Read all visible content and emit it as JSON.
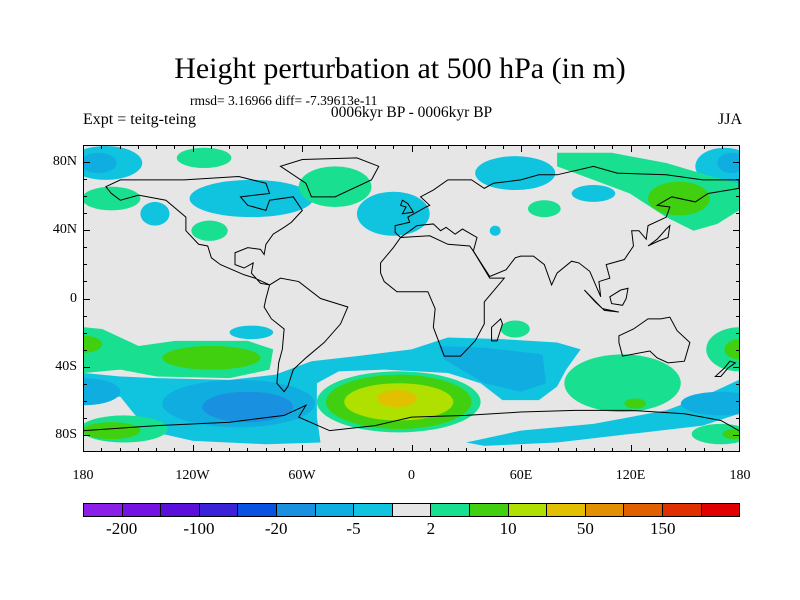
{
  "header": {
    "title": "Height perturbation at 500 hPa (in m)",
    "stats": "rmsd= 3.16966 diff= -7.39613e-11",
    "left_label": "Expt = teitg-teing",
    "center_label": "0006kyr BP - 0006kyr BP",
    "right_label": "JJA"
  },
  "axes": {
    "lon_ticks": [
      {
        "lon": -180,
        "label": "180"
      },
      {
        "lon": -120,
        "label": "120W"
      },
      {
        "lon": -60,
        "label": "60W"
      },
      {
        "lon": 0,
        "label": "0"
      },
      {
        "lon": 60,
        "label": "60E"
      },
      {
        "lon": 120,
        "label": "120E"
      },
      {
        "lon": 180,
        "label": "180"
      }
    ],
    "lat_ticks": [
      {
        "lat": 80,
        "label": "80N"
      },
      {
        "lat": 40,
        "label": "40N"
      },
      {
        "lat": 0,
        "label": "0"
      },
      {
        "lat": -40,
        "label": "40S"
      },
      {
        "lat": -80,
        "label": "80S"
      }
    ],
    "lon_range": [
      -180,
      180
    ],
    "lat_range": [
      -90,
      90
    ]
  },
  "colorbar": {
    "levels": [
      -200,
      -150,
      -100,
      -50,
      -20,
      -10,
      -5,
      -2,
      2,
      5,
      10,
      20,
      50,
      100,
      150,
      200
    ],
    "colors": [
      "#8a20e8",
      "#7414e2",
      "#5a10da",
      "#3a22d8",
      "#0a52e0",
      "#1a90e0",
      "#10aee0",
      "#10c4e0",
      "#e6e6e6",
      "#18e090",
      "#40d010",
      "#b0e000",
      "#e0c000",
      "#e09000",
      "#e06000",
      "#e03000",
      "#e00000"
    ],
    "labels": [
      {
        "boundary": 1,
        "text": "-200"
      },
      {
        "boundary": 3,
        "text": "-100"
      },
      {
        "boundary": 5,
        "text": "-20"
      },
      {
        "boundary": 7,
        "text": "-5"
      },
      {
        "boundary": 9,
        "text": "2"
      },
      {
        "boundary": 11,
        "text": "10"
      },
      {
        "boundary": 13,
        "text": "50"
      },
      {
        "boundary": 15,
        "text": "150"
      }
    ]
  }
}
